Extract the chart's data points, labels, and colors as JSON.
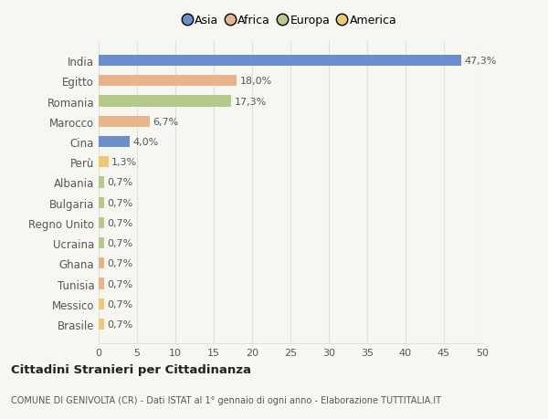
{
  "countries": [
    "India",
    "Egitto",
    "Romania",
    "Marocco",
    "Cina",
    "Perù",
    "Albania",
    "Bulgaria",
    "Regno Unito",
    "Ucraina",
    "Ghana",
    "Tunisia",
    "Messico",
    "Brasile"
  ],
  "values": [
    47.3,
    18.0,
    17.3,
    6.7,
    4.0,
    1.3,
    0.7,
    0.7,
    0.7,
    0.7,
    0.7,
    0.7,
    0.7,
    0.7
  ],
  "labels": [
    "47,3%",
    "18,0%",
    "17,3%",
    "6,7%",
    "4,0%",
    "1,3%",
    "0,7%",
    "0,7%",
    "0,7%",
    "0,7%",
    "0,7%",
    "0,7%",
    "0,7%",
    "0,7%"
  ],
  "colors": [
    "#6b8fcc",
    "#e8b48a",
    "#b5c98a",
    "#e8b48a",
    "#6b8fcc",
    "#f0c96e",
    "#b5c98a",
    "#b5c98a",
    "#b5c98a",
    "#b5c98a",
    "#e8b48a",
    "#e8b48a",
    "#f0c96e",
    "#f0c96e"
  ],
  "legend_labels": [
    "Asia",
    "Africa",
    "Europa",
    "America"
  ],
  "legend_colors": [
    "#6b8fcc",
    "#e8b48a",
    "#b5c98a",
    "#f0c96e"
  ],
  "title": "Cittadini Stranieri per Cittadinanza",
  "subtitle": "COMUNE DI GENIVOLTA (CR) - Dati ISTAT al 1° gennaio di ogni anno - Elaborazione TUTTITALIA.IT",
  "xlim": [
    0,
    50
  ],
  "xticks": [
    0,
    5,
    10,
    15,
    20,
    25,
    30,
    35,
    40,
    45,
    50
  ],
  "background_color": "#f7f7f2",
  "plot_background": "#ffffff",
  "grid_color": "#e0e0e0",
  "text_color": "#555555",
  "bar_height": 0.55
}
